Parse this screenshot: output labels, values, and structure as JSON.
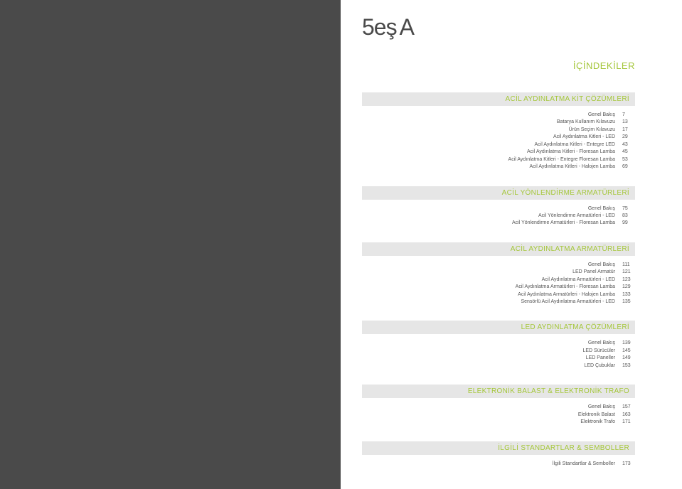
{
  "logo": {
    "part1": "5",
    "part2": "eş",
    "part3": "A"
  },
  "page_title": "İÇİNDEKİLER",
  "sections": [
    {
      "header": "ACİL AYDINLATMA KİT ÇÖZÜMLERİ",
      "rows": [
        {
          "label": "Genel Bakış",
          "page": "7"
        },
        {
          "label": "Batarya Kullanım Kılavuzu",
          "page": "13"
        },
        {
          "label": "Ürün Seçim Kılavuzu",
          "page": "17"
        },
        {
          "label": "Acil Aydınlatma Kitleri - LED",
          "page": "29"
        },
        {
          "label": "Acil Aydınlatma Kitleri - Entegre LED",
          "page": "43"
        },
        {
          "label": "Acil Aydınlatma Kitleri - Floresan Lamba",
          "page": "45"
        },
        {
          "label": "Acil Aydınlatma Kitleri - Entegre Floresan Lamba",
          "page": "53"
        },
        {
          "label": "Acil Aydınlatma Kitleri - Halojen Lamba",
          "page": "69"
        }
      ]
    },
    {
      "header": "ACİL YÖNLENDİRME ARMATÜRLERİ",
      "rows": [
        {
          "label": "Genel Bakış",
          "page": "75"
        },
        {
          "label": "Acil Yönlendirme Armatürleri - LED",
          "page": "83"
        },
        {
          "label": "Acil Yönlendirme Armatürleri - Floresan Lamba",
          "page": "99"
        }
      ]
    },
    {
      "header": "ACİL AYDINLATMA ARMATÜRLERİ",
      "rows": [
        {
          "label": "Genel Bakış",
          "page": "111"
        },
        {
          "label": "LED Panel Armatür",
          "page": "121"
        },
        {
          "label": "Acil Aydınlatma Armatürleri - LED",
          "page": "123"
        },
        {
          "label": "Acil Aydınlatma Armatürleri - Floresan Lamba",
          "page": "129"
        },
        {
          "label": "Acil Aydınlatma Armatürleri - Halojen Lamba",
          "page": "133"
        },
        {
          "label": "Sensörlü Acil Aydınlatma Armatürleri - LED",
          "page": "135"
        }
      ]
    },
    {
      "header": "LED AYDINLATMA ÇÖZÜMLERİ",
      "rows": [
        {
          "label": "Genel Bakış",
          "page": "139"
        },
        {
          "label": "LED Sürücüler",
          "page": "145"
        },
        {
          "label": "LED Paneller",
          "page": "149"
        },
        {
          "label": "LED Çubuklar",
          "page": "153"
        }
      ]
    },
    {
      "header": "ELEKTRONİK BALAST & ELEKTRONİK TRAFO",
      "rows": [
        {
          "label": "Genel Bakış",
          "page": "157"
        },
        {
          "label": "Elektronik Balast",
          "page": "163"
        },
        {
          "label": "Elektronik Trafo",
          "page": "171"
        }
      ]
    },
    {
      "header": "İLGİLİ STANDARTLAR & SEMBOLLER",
      "rows": [
        {
          "label": "İlgili Standartlar & Semboller",
          "page": "173"
        }
      ]
    }
  ]
}
